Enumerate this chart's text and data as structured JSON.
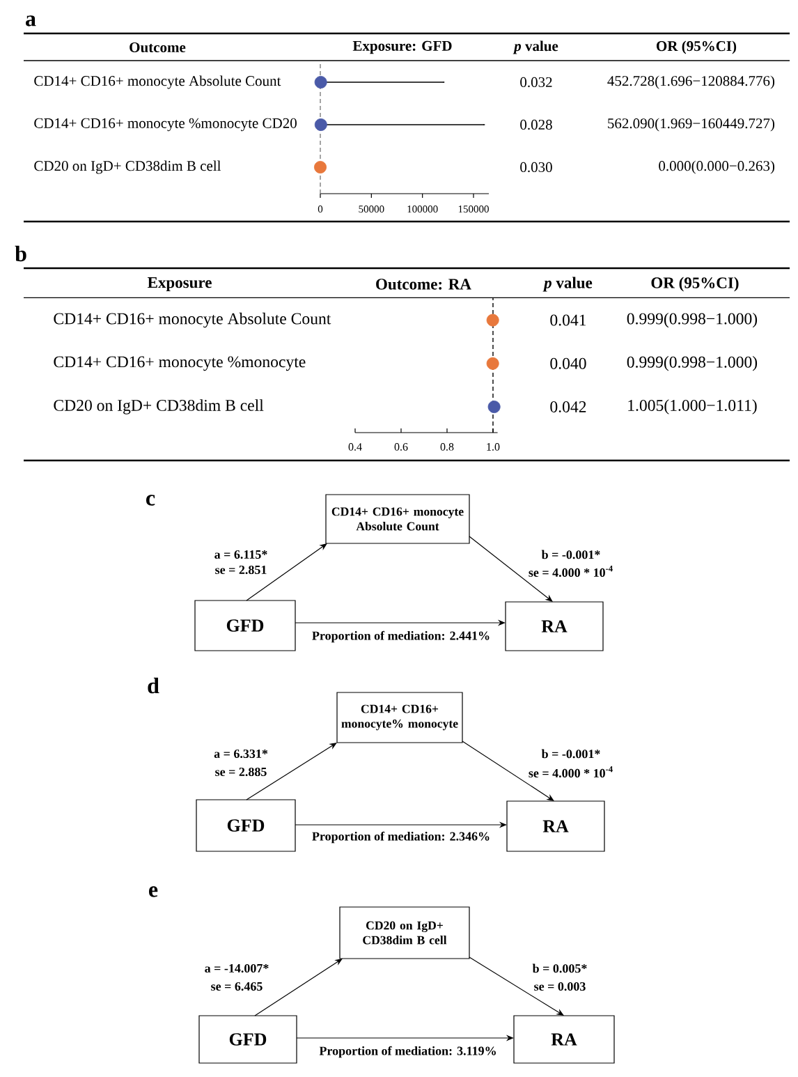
{
  "chart_data": [
    {
      "type": "scatter",
      "orientation": "horizontal",
      "title": "Exposure: GFD",
      "ylabel": "Outcome",
      "categories": [
        "CD14+ CD16+ monocyte Absolute Count",
        "CD14+ CD16+ monocyte %monocyte CD20",
        "CD20 on IgD+ CD38dim B cell"
      ],
      "values": [
        452.728,
        562.09,
        0.0
      ],
      "errors": [
        [
          1.696,
          120884.776
        ],
        [
          1.969,
          160449.727
        ],
        [
          0.0,
          0.263
        ]
      ],
      "colors": [
        "#4a5aa8",
        "#4a5aa8",
        "#e8783c"
      ],
      "value_labels": [
        "452.728(1.696−120884.776)",
        "562.090(1.969−160449.727)",
        "0.000(0.000−0.263)"
      ],
      "xlim": [
        0,
        165000
      ],
      "xticks": [
        0,
        50000,
        100000,
        150000
      ],
      "marker": "circle",
      "ref_lines": [
        {
          "axis": "x",
          "value": 1,
          "color": "#7f7f7f",
          "line_style": "dashed"
        }
      ],
      "annotations": [
        "a",
        "*p* value",
        "OR (95%CI)",
        "0.032",
        "0.028",
        "0.030"
      ]
    },
    {
      "type": "scatter",
      "orientation": "horizontal",
      "title": "Outcome: RA",
      "ylabel": "Exposure",
      "categories": [
        "CD14+ CD16+ monocyte Absolute Count",
        "CD14+ CD16+ monocyte %monocyte",
        "CD20 on IgD+ CD38dim B cell"
      ],
      "values": [
        0.999,
        0.999,
        1.005
      ],
      "errors": [
        [
          0.998,
          1.0
        ],
        [
          0.998,
          1.0
        ],
        [
          1.0,
          1.011
        ]
      ],
      "colors": [
        "#e8783c",
        "#e8783c",
        "#4a5aa8"
      ],
      "value_labels": [
        "0.999(0.998−1.000)",
        "0.999(0.998−1.000)",
        "1.005(1.000−1.011)"
      ],
      "xlim": [
        0.4,
        1.02
      ],
      "xticks": [
        0.4,
        0.6,
        0.8,
        {
          "value": 1,
          "label": "1.0"
        }
      ],
      "marker": "circle",
      "ref_lines": [
        {
          "axis": "x",
          "value": 1,
          "color": "#000000",
          "line_style": "dashed"
        }
      ],
      "annotations": [
        "b",
        "*p* value",
        "OR (95%CI)",
        "0.041",
        "0.040",
        "0.042"
      ]
    },
    {
      "type": "other",
      "categories": [
        "GFD",
        "CD14+ CD16+ monocyte Absolute Count",
        "RA"
      ],
      "annotations": [
        "c",
        "a = 6.115*",
        "se = 2.851",
        "b = -0.001*",
        "se = 4.000 * 10$^{-4}$",
        "Proportion of mediation: 2.441%"
      ]
    },
    {
      "type": "other",
      "categories": [
        "GFD",
        "CD14+ CD16+ monocyte% monocyte",
        "RA"
      ],
      "annotations": [
        "d",
        "a = 6.331*",
        "se = 2.885",
        "b = -0.001*",
        "se = 4.000 * 10$^{-4}$",
        "Proportion of mediation: 2.346%"
      ]
    },
    {
      "type": "other",
      "categories": [
        "GFD",
        "CD20 on IgD+ CD38dim B cell",
        "RA"
      ],
      "annotations": [
        "e",
        "a = -14.007*",
        "se = 6.465",
        "b = 0.005*",
        "se = 0.003",
        "Proportion of mediation: 3.119%"
      ]
    }
  ]
}
